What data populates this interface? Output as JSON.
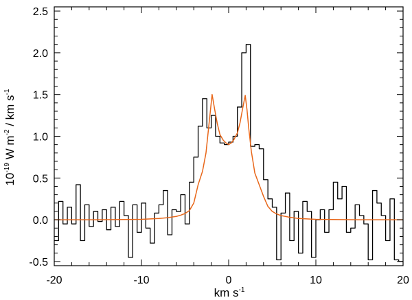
{
  "chart_data": {
    "type": "line",
    "title": "",
    "xlabel": {
      "base": "km s",
      "sup": "-1"
    },
    "ylabel": {
      "pre": "10",
      "pre_sup": "-19",
      "mid": " W m",
      "mid_sup": "-2",
      "post": " / km s",
      "post_sup": "-1"
    },
    "xlim": [
      -20,
      20
    ],
    "ylim": [
      -0.55,
      2.55
    ],
    "x_ticks": [
      -20,
      -10,
      0,
      10,
      20
    ],
    "x_tick_labels": [
      "-20",
      "-10",
      "0",
      "10",
      "20"
    ],
    "y_ticks": [
      -0.5,
      0.0,
      0.5,
      1.0,
      1.5,
      2.0,
      2.5
    ],
    "y_tick_labels": [
      "-0.5",
      "0.0",
      "0.5",
      "1.0",
      "1.5",
      "2.0",
      "2.5"
    ],
    "grid": false,
    "series": [
      {
        "style": "steps",
        "color": "#000000",
        "bin_width": 0.5,
        "x": [
          -20.0,
          -19.5,
          -19.0,
          -18.5,
          -18.0,
          -17.5,
          -17.0,
          -16.5,
          -16.0,
          -15.5,
          -15.0,
          -14.5,
          -14.0,
          -13.5,
          -13.0,
          -12.5,
          -12.0,
          -11.5,
          -11.0,
          -10.5,
          -10.0,
          -9.5,
          -9.0,
          -8.5,
          -8.0,
          -7.5,
          -7.0,
          -6.5,
          -6.0,
          -5.5,
          -5.0,
          -4.5,
          -4.0,
          -3.5,
          -3.0,
          -2.5,
          -2.0,
          -1.5,
          -1.0,
          -0.5,
          0.0,
          0.5,
          1.0,
          1.5,
          2.0,
          2.5,
          3.0,
          3.5,
          4.0,
          4.5,
          5.0,
          5.5,
          6.0,
          6.5,
          7.0,
          7.5,
          8.0,
          8.5,
          9.0,
          9.5,
          10.0,
          10.5,
          11.0,
          11.5,
          12.0,
          12.5,
          13.0,
          13.5,
          14.0,
          14.5,
          15.0,
          15.5,
          16.0,
          16.5,
          17.0,
          17.5,
          18.0,
          18.5,
          19.0,
          19.5
        ],
        "y": [
          -0.25,
          0.22,
          -0.05,
          0.15,
          -0.05,
          0.42,
          -0.25,
          0.18,
          -0.08,
          0.1,
          -0.02,
          0.12,
          -0.12,
          0.15,
          -0.08,
          0.22,
          0.05,
          -0.45,
          0.18,
          -0.15,
          0.2,
          -0.1,
          -0.28,
          0.08,
          0.18,
          0.35,
          -0.18,
          0.12,
          0.1,
          0.3,
          -0.05,
          0.45,
          0.75,
          1.12,
          1.45,
          1.1,
          1.25,
          1.0,
          0.92,
          0.9,
          0.93,
          1.0,
          1.35,
          2.0,
          2.1,
          0.88,
          0.9,
          0.85,
          0.48,
          0.25,
          0.15,
          -0.48,
          0.08,
          0.32,
          -0.25,
          0.1,
          -0.4,
          0.22,
          0.1,
          -0.45,
          0.0,
          0.12,
          -0.15,
          0.12,
          0.45,
          0.25,
          0.4,
          -0.15,
          -0.1,
          0.18,
          0.05,
          -0.05,
          -0.48,
          0.35,
          0.2,
          0.05,
          -0.25,
          0.25,
          -0.48,
          -0.5
        ]
      },
      {
        "style": "line",
        "color": "#e8671a",
        "x": [
          -20,
          -15,
          -10,
          -8,
          -7,
          -6,
          -5.5,
          -5,
          -4.5,
          -4,
          -3.5,
          -3,
          -2.6,
          -2.3,
          -2.1,
          -1.9,
          -1.6,
          -1.3,
          -1,
          -0.6,
          -0.3,
          0,
          0.3,
          0.6,
          1,
          1.3,
          1.6,
          1.9,
          2.1,
          2.3,
          2.6,
          3,
          3.5,
          4,
          4.5,
          5,
          5.5,
          6,
          7,
          8,
          10,
          15,
          20
        ],
        "y": [
          0,
          0,
          0.005,
          0.015,
          0.025,
          0.04,
          0.055,
          0.075,
          0.11,
          0.2,
          0.42,
          0.58,
          0.8,
          1.1,
          1.3,
          1.5,
          1.32,
          1.15,
          1.02,
          0.95,
          0.92,
          0.9,
          0.92,
          0.96,
          1.04,
          1.16,
          1.33,
          1.49,
          1.32,
          1.1,
          0.82,
          0.56,
          0.42,
          0.28,
          0.16,
          0.1,
          0.07,
          0.05,
          0.03,
          0.015,
          0.005,
          0,
          0
        ]
      }
    ]
  }
}
